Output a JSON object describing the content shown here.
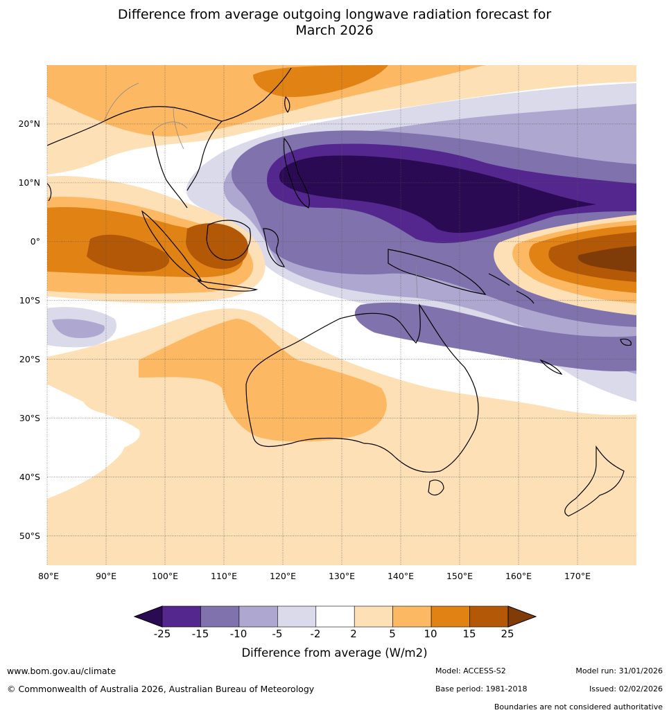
{
  "title": {
    "line1": "Difference from average outgoing longwave radiation forecast for",
    "line2": "March 2026"
  },
  "map": {
    "lat_labels": [
      "20°N",
      "10°N",
      "0°",
      "10°S",
      "20°S",
      "30°S",
      "40°S",
      "50°S"
    ],
    "lat_values": [
      20,
      10,
      0,
      -10,
      -20,
      -30,
      -40,
      -50
    ],
    "lon_labels": [
      "80°E",
      "90°E",
      "100°E",
      "110°E",
      "120°E",
      "130°E",
      "140°E",
      "150°E",
      "160°E",
      "170°E"
    ],
    "lon_values": [
      80,
      90,
      100,
      110,
      120,
      130,
      140,
      150,
      160,
      170
    ],
    "lon_range": [
      80,
      180
    ],
    "lat_range": [
      -55,
      30
    ]
  },
  "colorbar": {
    "title": "Difference from average (W/m2)",
    "ticks": [
      "-25",
      "-15",
      "-10",
      "-5",
      "-2",
      "2",
      "5",
      "10",
      "15",
      "25"
    ],
    "colors": [
      "#2a0a52",
      "#54278f",
      "#8072ad",
      "#aea8d0",
      "#dadaeb",
      "#ffffff",
      "#fee0b6",
      "#fdb863",
      "#e08214",
      "#b35806",
      "#7f3b08"
    ]
  },
  "footer": {
    "website": "www.bom.gov.au/climate",
    "copyright": "© Commonwealth of Australia 2026, Australian Bureau of Meteorology",
    "model": "Model: ACCESS-S2",
    "base_period": "Base period: 1981-2018",
    "model_run": "Model run: 31/01/2026",
    "issued": "Issued: 02/02/2026",
    "disclaimer": "Boundaries are not considered authoritative"
  }
}
